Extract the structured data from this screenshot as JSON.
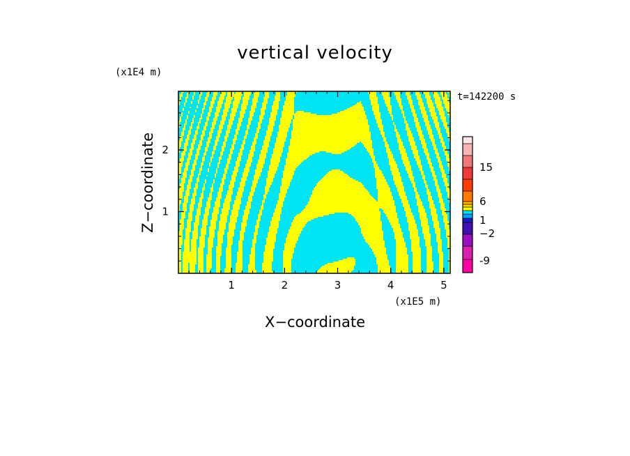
{
  "chart_data": {
    "type": "heatmap",
    "title": "vertical velocity",
    "xlabel": "X−coordinate",
    "ylabel": "Z−coordinate",
    "x_scale_label": "(x1E5 m)",
    "y_scale_label": "(x1E4 m)",
    "time_label": "t=142200 s",
    "xlim": [
      0,
      5.12
    ],
    "ylim": [
      0,
      2.95
    ],
    "x_ticks": [
      1,
      2,
      3,
      4,
      5
    ],
    "x_tick_labels": [
      "1",
      "2",
      "3",
      "4",
      "5"
    ],
    "y_ticks": [
      1,
      2
    ],
    "y_tick_labels": [
      "1",
      "2"
    ],
    "field_colors": {
      "positive": "#ffff00",
      "negative": "#00e5f5"
    },
    "colorbar": {
      "levels": [
        {
          "color": "#ff00a0"
        },
        {
          "color": "#d81fb0"
        },
        {
          "color": "#9a10c0"
        },
        {
          "color": "#4010b0"
        },
        {
          "color": "#1818c8"
        },
        {
          "color": "#00a0ff"
        },
        {
          "color": "#00e5f5"
        },
        {
          "color": "#ffff00"
        },
        {
          "color": "#ffd400"
        },
        {
          "color": "#ffb000"
        },
        {
          "color": "#ff7800"
        },
        {
          "color": "#ff3c00"
        },
        {
          "color": "#f03a3a"
        },
        {
          "color": "#f07878"
        },
        {
          "color": "#f8b4b4"
        },
        {
          "color": "#ffe4e4"
        }
      ],
      "tick_labels": [
        "-9",
        "−2",
        "1",
        "6",
        "15"
      ]
    }
  }
}
